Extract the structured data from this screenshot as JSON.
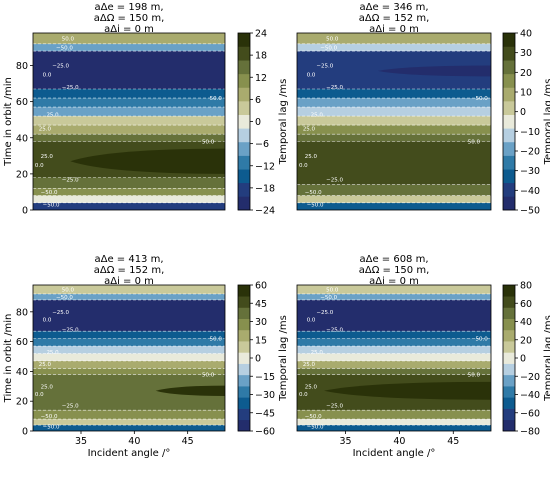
{
  "colors": {
    "palette": [
      "#232d6c",
      "#233d7e",
      "#0d5b8f",
      "#2f7aa7",
      "#6aa1c6",
      "#b6cfe1",
      "#e9eadb",
      "#c9c99a",
      "#a9ab6e",
      "#87904e",
      "#65713a",
      "#434c1c",
      "#2a3209"
    ],
    "contour_line": "#ffffff"
  },
  "chart_data": [
    {
      "type": "heatmap",
      "title": [
        "aΔe =  198 m,",
        "aΔΩ = 150 m,",
        "aΔi =  0 m"
      ],
      "xlabel": "",
      "ylabel": "Time in orbit /min",
      "xlim": [
        30.5,
        48.5
      ],
      "ylim": [
        0,
        98
      ],
      "xticks": [],
      "yticks": [
        "0",
        "20",
        "40",
        "60",
        "80"
      ],
      "colorbar": {
        "label": "Temporal lag /ms",
        "range": [
          -24,
          24
        ],
        "ticks": [
          "24",
          "18",
          "12",
          "6",
          "0",
          "−6",
          "−12",
          "−18",
          "−24"
        ]
      },
      "contour_labels": [
        "−50.0",
        "−25.0",
        "0.0",
        "25.0",
        "50.0"
      ],
      "bands": [
        {
          "y0": 0,
          "y1": 4,
          "v": -18
        },
        {
          "y0": 4,
          "y1": 8,
          "v": 0
        },
        {
          "y0": 8,
          "y1": 12,
          "v": 12
        },
        {
          "y0": 12,
          "y1": 18,
          "v": 16
        },
        {
          "y0": 18,
          "y1": 38,
          "v": 20
        },
        {
          "y0": 38,
          "y1": 42,
          "v": 14
        },
        {
          "y0": 42,
          "y1": 47,
          "v": 8
        },
        {
          "y0": 47,
          "y1": 52,
          "v": 2
        },
        {
          "y0": 52,
          "y1": 57,
          "v": -6
        },
        {
          "y0": 57,
          "y1": 62,
          "v": -12
        },
        {
          "y0": 62,
          "y1": 67,
          "v": -16
        },
        {
          "y0": 67,
          "y1": 88,
          "v": -21
        },
        {
          "y0": 88,
          "y1": 92,
          "v": -6
        },
        {
          "y0": 92,
          "y1": 98,
          "v": 6
        }
      ],
      "lobe": {
        "apex_x": 34,
        "y_center": 27,
        "half_height": 7,
        "v": 23
      }
    },
    {
      "type": "heatmap",
      "title": [
        "aΔe =  346 m,",
        "aΔΩ = 152 m,",
        "aΔi =  0 m"
      ],
      "xlabel": "",
      "ylabel": "",
      "xlim": [
        30.5,
        48.5
      ],
      "ylim": [
        0,
        98
      ],
      "xticks": [],
      "yticks": [],
      "colorbar": {
        "label": "Temporal lag /ms",
        "range": [
          -50,
          40
        ],
        "ticks": [
          "40",
          "30",
          "20",
          "10",
          "0",
          "−10",
          "−20",
          "−30",
          "−40",
          "−50"
        ]
      },
      "contour_labels": [
        "−50.0",
        "−25.0",
        "0.0",
        "25.0",
        "50.0"
      ],
      "bands": [
        {
          "y0": 0,
          "y1": 4,
          "v": -30
        },
        {
          "y0": 4,
          "y1": 8,
          "v": 5
        },
        {
          "y0": 8,
          "y1": 14,
          "v": 20
        },
        {
          "y0": 14,
          "y1": 38,
          "v": 33
        },
        {
          "y0": 38,
          "y1": 42,
          "v": 25
        },
        {
          "y0": 42,
          "y1": 47,
          "v": 14
        },
        {
          "y0": 47,
          "y1": 52,
          "v": 2
        },
        {
          "y0": 52,
          "y1": 57,
          "v": -10
        },
        {
          "y0": 57,
          "y1": 62,
          "v": -22
        },
        {
          "y0": 62,
          "y1": 67,
          "v": -32
        },
        {
          "y0": 67,
          "y1": 88,
          "v": -42
        },
        {
          "y0": 88,
          "y1": 92,
          "v": -15
        },
        {
          "y0": 92,
          "y1": 98,
          "v": 8
        }
      ],
      "lobe": {
        "apex_x": 38,
        "y_center": 77,
        "half_height": 3,
        "v": -48
      }
    },
    {
      "type": "heatmap",
      "title": [
        "aΔe =  413 m,",
        "aΔΩ = 152 m,",
        "aΔi =  0 m"
      ],
      "xlabel": "Incident angle /°",
      "ylabel": "Time in orbit /min",
      "xlim": [
        30.5,
        48.5
      ],
      "ylim": [
        0,
        98
      ],
      "xticks": [
        "35",
        "40",
        "45"
      ],
      "yticks": [
        "0",
        "20",
        "40",
        "60",
        "80"
      ],
      "colorbar": {
        "label": "Temporal lag /ms",
        "range": [
          -60,
          60
        ],
        "ticks": [
          "60",
          "45",
          "30",
          "15",
          "0",
          "−15",
          "−30",
          "−45",
          "−60"
        ]
      },
      "contour_labels": [
        "−50.0",
        "−25.0",
        "0.0",
        "25.0",
        "50.0"
      ],
      "bands": [
        {
          "y0": 0,
          "y1": 4,
          "v": -35
        },
        {
          "y0": 4,
          "y1": 8,
          "v": 5
        },
        {
          "y0": 8,
          "y1": 14,
          "v": 25
        },
        {
          "y0": 14,
          "y1": 38,
          "v": 40
        },
        {
          "y0": 38,
          "y1": 42,
          "v": 30
        },
        {
          "y0": 42,
          "y1": 47,
          "v": 15
        },
        {
          "y0": 47,
          "y1": 52,
          "v": 2
        },
        {
          "y0": 52,
          "y1": 57,
          "v": -12
        },
        {
          "y0": 57,
          "y1": 62,
          "v": -25
        },
        {
          "y0": 62,
          "y1": 67,
          "v": -38
        },
        {
          "y0": 67,
          "y1": 88,
          "v": -52
        },
        {
          "y0": 88,
          "y1": 92,
          "v": -20
        },
        {
          "y0": 92,
          "y1": 98,
          "v": 8
        }
      ],
      "lobe": {
        "apex_x": 42,
        "y_center": 27,
        "half_height": 3.5,
        "v": 55
      }
    },
    {
      "type": "heatmap",
      "title": [
        "aΔe =  608 m,",
        "aΔΩ = 150 m,",
        "aΔi =  0 m"
      ],
      "xlabel": "Incident angle /°",
      "ylabel": "",
      "xlim": [
        30.5,
        48.5
      ],
      "ylim": [
        0,
        98
      ],
      "xticks": [
        "35",
        "40",
        "45"
      ],
      "yticks": [],
      "colorbar": {
        "label": "Temporal lag /ms",
        "range": [
          -80,
          80
        ],
        "ticks": [
          "80",
          "60",
          "40",
          "20",
          "0",
          "−20",
          "−40",
          "−60",
          "−80"
        ]
      },
      "contour_labels": [
        "−50.0",
        "−25.0",
        "0.0",
        "25.0",
        "50.0"
      ],
      "bands": [
        {
          "y0": 0,
          "y1": 4,
          "v": -50
        },
        {
          "y0": 4,
          "y1": 8,
          "v": 0
        },
        {
          "y0": 8,
          "y1": 14,
          "v": 35
        },
        {
          "y0": 14,
          "y1": 38,
          "v": 62
        },
        {
          "y0": 38,
          "y1": 42,
          "v": 45
        },
        {
          "y0": 42,
          "y1": 47,
          "v": 22
        },
        {
          "y0": 47,
          "y1": 52,
          "v": 2
        },
        {
          "y0": 52,
          "y1": 57,
          "v": -18
        },
        {
          "y0": 57,
          "y1": 62,
          "v": -38
        },
        {
          "y0": 62,
          "y1": 67,
          "v": -55
        },
        {
          "y0": 67,
          "y1": 88,
          "v": -72
        },
        {
          "y0": 88,
          "y1": 92,
          "v": -30
        },
        {
          "y0": 92,
          "y1": 98,
          "v": 10
        }
      ],
      "lobe": {
        "apex_x": 33,
        "y_center": 27,
        "half_height": 6,
        "v": 75
      }
    }
  ]
}
